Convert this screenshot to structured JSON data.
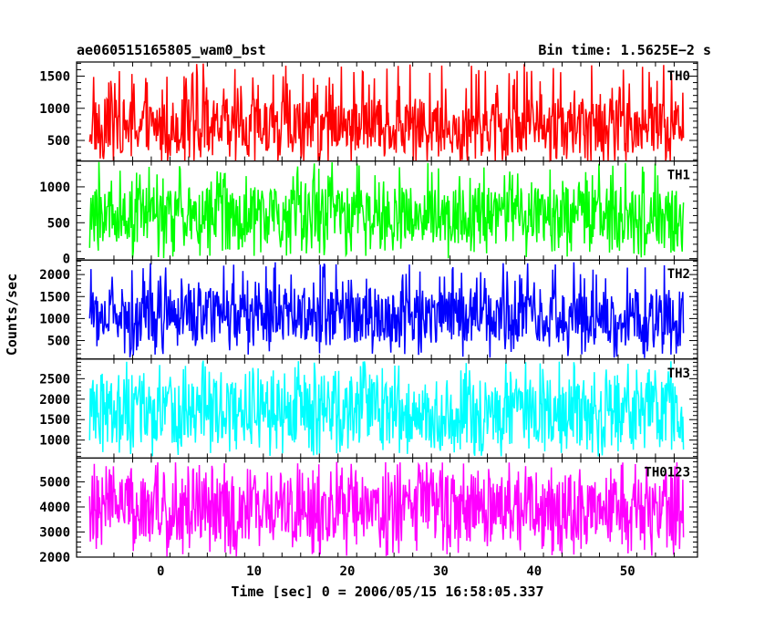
{
  "header": {
    "left_title": "ae060515165805_wam0_bst",
    "right_title": "Bin time: 1.5625E−2 s"
  },
  "chart_data": {
    "type": "line",
    "xlabel": "Time [sec] 0 = 2006/05/15 16:58:05.337",
    "ylabel": "Counts/sec",
    "xlim": [
      -9,
      57.5
    ],
    "x_data_range": [
      -7.6,
      56.0
    ],
    "xticks": [
      0,
      10,
      20,
      30,
      40,
      50
    ],
    "xtick_labels": [
      "0",
      "10",
      "20",
      "30",
      "40",
      "50"
    ],
    "panels": [
      {
        "label": "TH0",
        "color": "#ff0000",
        "ylim": [
          180,
          1720
        ],
        "yticks": [
          500,
          1000,
          1500
        ],
        "ytick_labels": [
          "500",
          "1000",
          "1500"
        ],
        "typical_range": [
          300,
          1150
        ],
        "peak_range": [
          100,
          1700
        ]
      },
      {
        "label": "TH1",
        "color": "#00ff00",
        "ylim": [
          -20,
          1360
        ],
        "yticks": [
          0,
          500,
          1000
        ],
        "ytick_labels": [
          "0",
          "500",
          "1000"
        ],
        "typical_range": [
          200,
          1000
        ],
        "peak_range": [
          0,
          1350
        ]
      },
      {
        "label": "TH2",
        "color": "#0000ff",
        "ylim": [
          80,
          2330
        ],
        "yticks": [
          500,
          1000,
          1500,
          2000
        ],
        "ytick_labels": [
          "500",
          "1000",
          "1500",
          "2000"
        ],
        "typical_range": [
          450,
          1700
        ],
        "peak_range": [
          100,
          2300
        ]
      },
      {
        "label": "TH3",
        "color": "#00ffff",
        "ylim": [
          560,
          2980
        ],
        "yticks": [
          1000,
          1500,
          2000,
          2500
        ],
        "ytick_labels": [
          "1000",
          "1500",
          "2000",
          "2500"
        ],
        "typical_range": [
          900,
          2500
        ],
        "peak_range": [
          600,
          2950
        ]
      },
      {
        "label": "TH0123",
        "color": "#ff00ff",
        "ylim": [
          2000,
          5950
        ],
        "yticks": [
          2000,
          3000,
          4000,
          5000
        ],
        "ytick_labels": [
          "2000",
          "3000",
          "4000",
          "5000"
        ],
        "typical_range": [
          2600,
          5300
        ],
        "peak_range": [
          2000,
          5800
        ]
      }
    ]
  }
}
